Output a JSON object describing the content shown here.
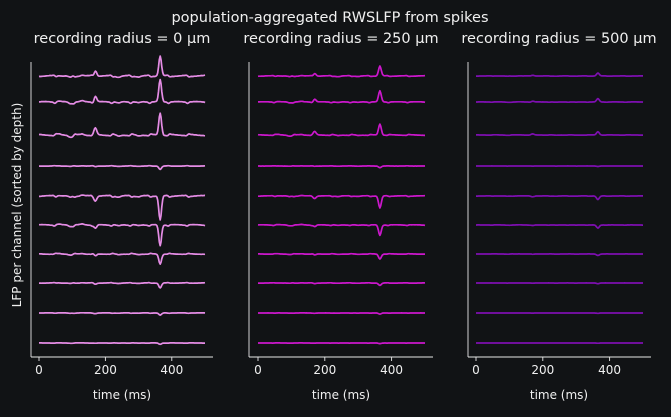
{
  "figure": {
    "suptitle": "population-aggregated RWSLFP from spikes",
    "ylabel": "LFP per channel (sorted by depth)",
    "background": "#111315",
    "axis_color": "#e8e8e8",
    "text_color": "#f0f0f0"
  },
  "chart_data": [
    {
      "type": "line",
      "title": "recording radius = 0 μm",
      "xlabel": "time (ms)",
      "ylabel": "LFP per channel (sorted by depth)",
      "xlim": [
        0,
        500
      ],
      "xticks": [
        0,
        200,
        400
      ],
      "color": "#e58ce5",
      "amplitude_scale": 1.0,
      "channels": 10,
      "event_times_ms": [
        170,
        365
      ],
      "grid": false,
      "legend": "none"
    },
    {
      "type": "line",
      "title": "recording radius = 250 μm",
      "xlabel": "time (ms)",
      "xlim": [
        0,
        500
      ],
      "xticks": [
        0,
        200,
        400
      ],
      "color": "#cc17cc",
      "amplitude_scale": 0.5,
      "channels": 10,
      "event_times_ms": [
        170,
        365
      ],
      "grid": false,
      "legend": "none"
    },
    {
      "type": "line",
      "title": "recording radius = 500 μm",
      "xlabel": "time (ms)",
      "xlim": [
        0,
        500
      ],
      "xticks": [
        0,
        200,
        400
      ],
      "color": "#7d0fb0",
      "amplitude_scale": 0.15,
      "channels": 10,
      "event_times_ms": [
        170,
        365
      ],
      "grid": false,
      "legend": "none"
    }
  ]
}
